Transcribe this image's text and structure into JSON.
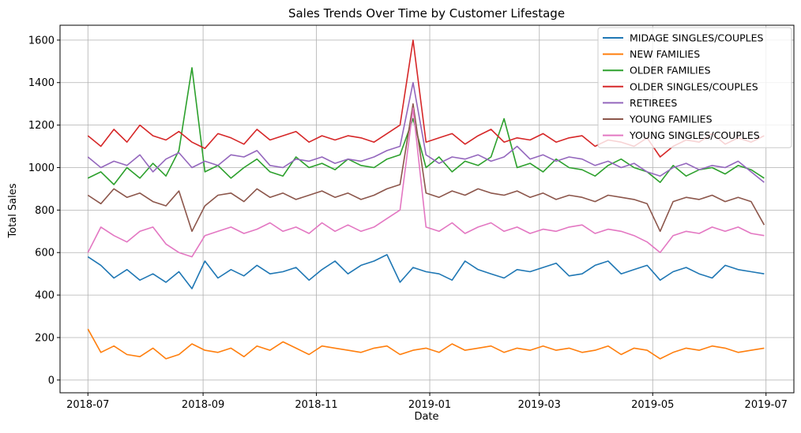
{
  "chart_data": {
    "type": "line",
    "title": "Sales Trends Over Time by Customer Lifestage",
    "xlabel": "Date",
    "ylabel": "Total Sales",
    "xlim": [
      "2018-06-16",
      "2019-07-16"
    ],
    "ylim": [
      -60,
      1670
    ],
    "x_ticks": [
      "2018-07",
      "2018-09",
      "2018-11",
      "2019-01",
      "2019-03",
      "2019-05",
      "2019-07"
    ],
    "y_ticks": [
      0,
      200,
      400,
      600,
      800,
      1000,
      1200,
      1400,
      1600
    ],
    "grid": true,
    "legend_position": "top-right",
    "x_start": "2018-07-01",
    "x_end": "2019-06-30",
    "sample_interval_days": 7,
    "series": [
      {
        "name": "MIDAGE SINGLES/COUPLES",
        "color": "#1f77b4",
        "values": [
          580,
          540,
          480,
          520,
          470,
          500,
          460,
          510,
          430,
          560,
          480,
          520,
          490,
          540,
          500,
          510,
          530,
          470,
          520,
          560,
          500,
          540,
          560,
          590,
          460,
          530,
          510,
          500,
          470,
          560,
          520,
          500,
          480,
          520,
          510,
          530,
          550,
          490,
          500,
          540,
          560,
          500,
          520,
          540,
          470,
          510,
          530,
          500,
          480,
          540,
          520,
          510,
          500
        ]
      },
      {
        "name": "NEW FAMILIES",
        "color": "#ff7f0e",
        "values": [
          240,
          130,
          160,
          120,
          110,
          150,
          100,
          120,
          170,
          140,
          130,
          150,
          110,
          160,
          140,
          180,
          150,
          120,
          160,
          150,
          140,
          130,
          150,
          160,
          120,
          140,
          150,
          130,
          170,
          140,
          150,
          160,
          130,
          150,
          140,
          160,
          140,
          150,
          130,
          140,
          160,
          120,
          150,
          140,
          100,
          130,
          150,
          140,
          160,
          150,
          130,
          140,
          150
        ]
      },
      {
        "name": "OLDER FAMILIES",
        "color": "#2ca02c",
        "values": [
          950,
          980,
          920,
          1000,
          950,
          1020,
          960,
          1080,
          1470,
          980,
          1010,
          950,
          1000,
          1040,
          980,
          960,
          1050,
          1000,
          1020,
          990,
          1040,
          1010,
          1000,
          1040,
          1060,
          1230,
          1000,
          1050,
          980,
          1030,
          1010,
          1050,
          1230,
          1000,
          1020,
          980,
          1040,
          1000,
          990,
          960,
          1010,
          1040,
          1000,
          980,
          930,
          1010,
          960,
          990,
          1000,
          970,
          1010,
          990,
          950
        ]
      },
      {
        "name": "OLDER SINGLES/COUPLES",
        "color": "#d62728",
        "values": [
          1150,
          1100,
          1180,
          1120,
          1200,
          1150,
          1130,
          1170,
          1120,
          1090,
          1160,
          1140,
          1110,
          1180,
          1130,
          1150,
          1170,
          1120,
          1150,
          1130,
          1150,
          1140,
          1120,
          1160,
          1200,
          1600,
          1120,
          1140,
          1160,
          1110,
          1150,
          1180,
          1120,
          1140,
          1130,
          1160,
          1120,
          1140,
          1150,
          1100,
          1130,
          1120,
          1100,
          1140,
          1050,
          1100,
          1130,
          1120,
          1160,
          1110,
          1140,
          1120,
          1150
        ]
      },
      {
        "name": "RETIREES",
        "color": "#9467bd",
        "values": [
          1050,
          1000,
          1030,
          1010,
          1060,
          980,
          1040,
          1070,
          1000,
          1030,
          1010,
          1060,
          1050,
          1080,
          1010,
          1000,
          1040,
          1030,
          1050,
          1020,
          1040,
          1030,
          1050,
          1080,
          1100,
          1400,
          1060,
          1020,
          1050,
          1040,
          1060,
          1030,
          1050,
          1100,
          1040,
          1060,
          1030,
          1050,
          1040,
          1010,
          1030,
          1000,
          1020,
          980,
          960,
          1000,
          1020,
          990,
          1010,
          1000,
          1030,
          980,
          930
        ]
      },
      {
        "name": "YOUNG FAMILIES",
        "color": "#8c564b",
        "values": [
          870,
          830,
          900,
          860,
          880,
          840,
          820,
          890,
          700,
          820,
          870,
          880,
          840,
          900,
          860,
          880,
          850,
          870,
          890,
          860,
          880,
          850,
          870,
          900,
          920,
          1300,
          880,
          860,
          890,
          870,
          900,
          880,
          870,
          890,
          860,
          880,
          850,
          870,
          860,
          840,
          870,
          860,
          850,
          830,
          700,
          840,
          860,
          850,
          870,
          840,
          860,
          840,
          730
        ]
      },
      {
        "name": "YOUNG SINGLES/COUPLES",
        "color": "#e377c2",
        "values": [
          600,
          720,
          680,
          650,
          700,
          720,
          640,
          600,
          580,
          680,
          700,
          720,
          690,
          710,
          740,
          700,
          720,
          690,
          740,
          700,
          730,
          700,
          720,
          760,
          800,
          1280,
          720,
          700,
          740,
          690,
          720,
          740,
          700,
          720,
          690,
          710,
          700,
          720,
          730,
          690,
          710,
          700,
          680,
          650,
          600,
          680,
          700,
          690,
          720,
          700,
          720,
          690,
          680
        ]
      }
    ]
  }
}
